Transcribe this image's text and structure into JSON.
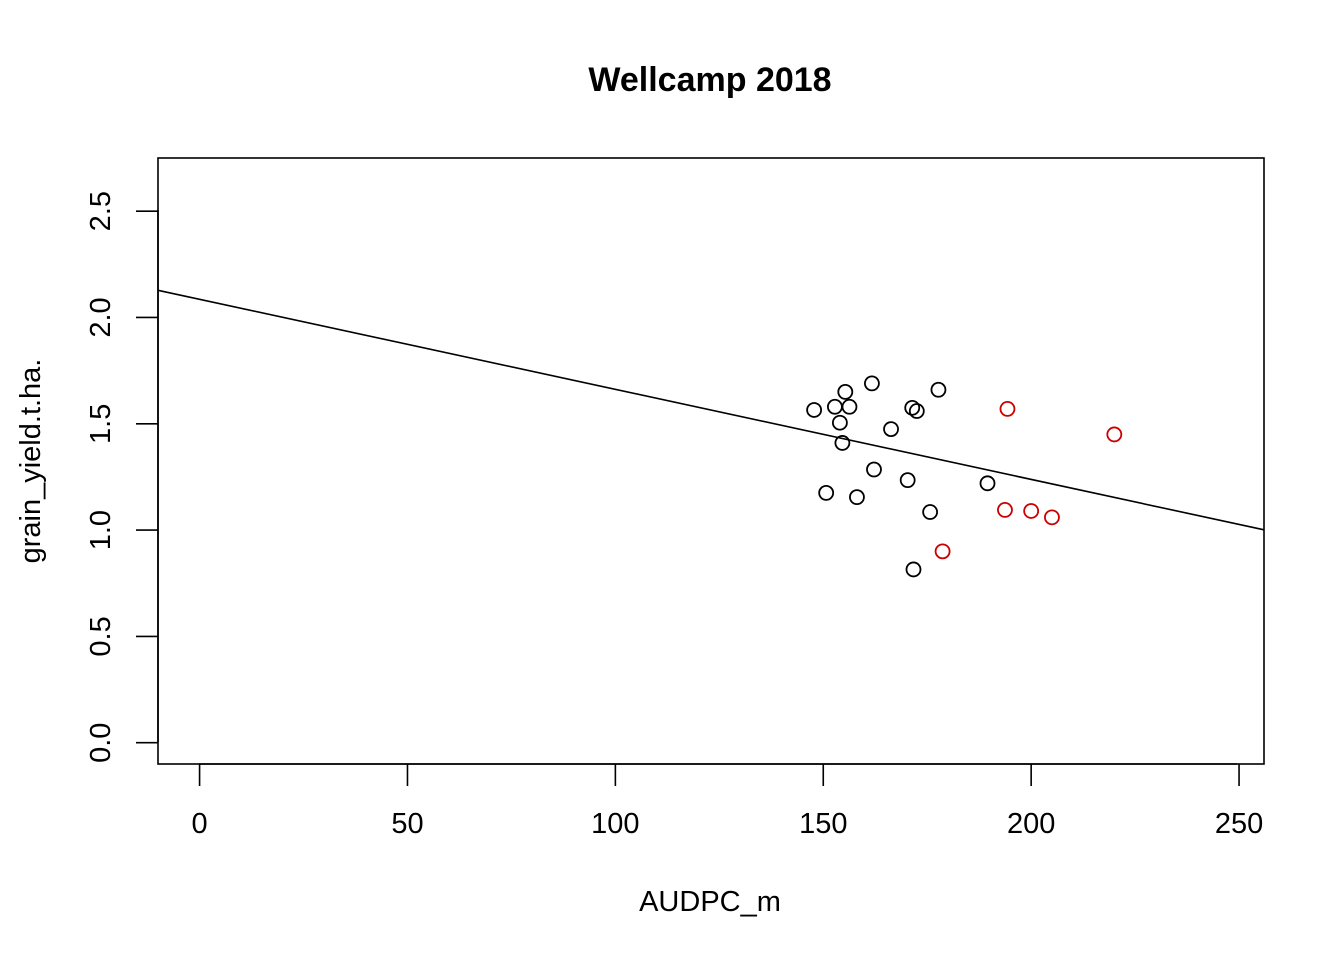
{
  "chart_data": {
    "type": "scatter",
    "title": "Wellcamp 2018",
    "xlabel": "AUDPC_m",
    "ylabel": "grain_yield.t.ha.",
    "xlim": [
      -10,
      256
    ],
    "ylim": [
      -0.1,
      2.75
    ],
    "xticks": [
      0,
      50,
      100,
      150,
      200,
      250
    ],
    "xtick_labels": [
      "0",
      "50",
      "100",
      "150",
      "200",
      "250"
    ],
    "yticks": [
      0.0,
      0.5,
      1.0,
      1.5,
      2.0,
      2.5
    ],
    "ytick_labels": [
      "0.0",
      "0.5",
      "1.0",
      "1.5",
      "2.0",
      "2.5"
    ],
    "grid": false,
    "series": [
      {
        "color": "#000000",
        "marker": "open-circle",
        "points": [
          {
            "x": 147.8,
            "y": 1.565
          },
          {
            "x": 150.7,
            "y": 1.175
          },
          {
            "x": 152.8,
            "y": 1.58
          },
          {
            "x": 154.0,
            "y": 1.505
          },
          {
            "x": 154.6,
            "y": 1.41
          },
          {
            "x": 155.3,
            "y": 1.65
          },
          {
            "x": 156.3,
            "y": 1.58
          },
          {
            "x": 158.1,
            "y": 1.155
          },
          {
            "x": 161.7,
            "y": 1.69
          },
          {
            "x": 162.2,
            "y": 1.285
          },
          {
            "x": 166.3,
            "y": 1.475
          },
          {
            "x": 170.3,
            "y": 1.235
          },
          {
            "x": 171.4,
            "y": 1.575
          },
          {
            "x": 171.7,
            "y": 0.815
          },
          {
            "x": 172.5,
            "y": 1.56
          },
          {
            "x": 175.7,
            "y": 1.085
          },
          {
            "x": 177.7,
            "y": 1.66
          },
          {
            "x": 189.5,
            "y": 1.22
          }
        ]
      },
      {
        "color": "#cc0000",
        "marker": "open-circle",
        "points": [
          {
            "x": 178.7,
            "y": 0.9
          },
          {
            "x": 193.7,
            "y": 1.095
          },
          {
            "x": 194.3,
            "y": 1.57
          },
          {
            "x": 200.0,
            "y": 1.09
          },
          {
            "x": 205.0,
            "y": 1.06
          },
          {
            "x": 220.0,
            "y": 1.45
          }
        ]
      }
    ],
    "regression_line": {
      "color": "#000000",
      "intercept": 2.0855,
      "slope": -0.0042354
    }
  }
}
